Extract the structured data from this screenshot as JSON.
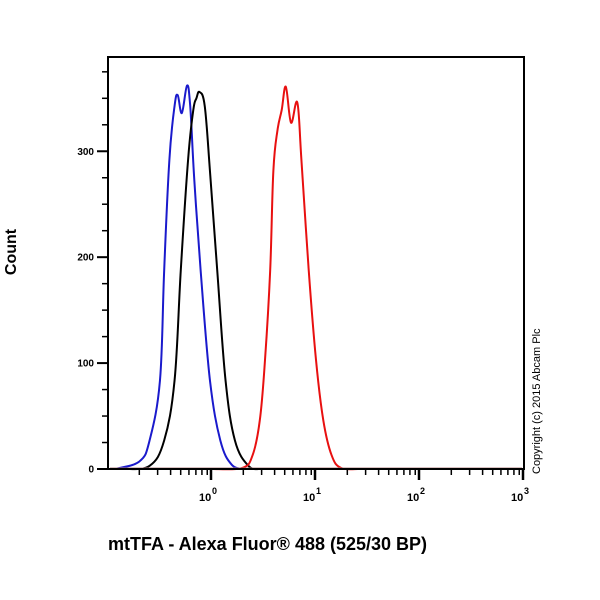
{
  "chart_data": {
    "type": "line",
    "subtype": "flow-cytometry-histogram",
    "title": "",
    "xlabel": "mtTFA - Alexa Fluor® 488 (525/30 BP)",
    "ylabel": "Count",
    "xscale": "log",
    "xlim_log10": [
      -1,
      3
    ],
    "ylim": [
      0,
      389
    ],
    "x_tick_labels": [
      {
        "base": "10",
        "exp": "0",
        "log10": 0
      },
      {
        "base": "10",
        "exp": "1",
        "log10": 1
      },
      {
        "base": "10",
        "exp": "2",
        "log10": 2
      },
      {
        "base": "10",
        "exp": "3",
        "log10": 3
      }
    ],
    "y_ticks": [
      0,
      100,
      200,
      300
    ],
    "y_minor_step": 25,
    "grid": false,
    "legend": null,
    "annotation": "Copyright (c) 2015 Abcam Plc",
    "series": [
      {
        "name": "blue",
        "color": "#1a1acc",
        "points_log10_count": [
          [
            -0.94,
            0
          ],
          [
            -0.7,
            7
          ],
          [
            -0.6,
            27
          ],
          [
            -0.5,
            84
          ],
          [
            -0.46,
            188
          ],
          [
            -0.41,
            292
          ],
          [
            -0.36,
            343
          ],
          [
            -0.33,
            353
          ],
          [
            -0.29,
            336
          ],
          [
            -0.24,
            362
          ],
          [
            -0.21,
            343
          ],
          [
            -0.17,
            273
          ],
          [
            -0.11,
            188
          ],
          [
            -0.02,
            84
          ],
          [
            0.08,
            27
          ],
          [
            0.19,
            4
          ],
          [
            0.32,
            0
          ]
        ]
      },
      {
        "name": "black",
        "color": "#000000",
        "points_log10_count": [
          [
            -0.84,
            0
          ],
          [
            -0.6,
            3
          ],
          [
            -0.46,
            27
          ],
          [
            -0.36,
            84
          ],
          [
            -0.3,
            188
          ],
          [
            -0.23,
            292
          ],
          [
            -0.18,
            339
          ],
          [
            -0.15,
            350
          ],
          [
            -0.12,
            356
          ],
          [
            -0.07,
            343
          ],
          [
            -0.02,
            282
          ],
          [
            0.05,
            188
          ],
          [
            0.13,
            84
          ],
          [
            0.22,
            27
          ],
          [
            0.35,
            3
          ],
          [
            0.47,
            0
          ]
        ]
      },
      {
        "name": "red",
        "color": "#e81010",
        "points_log10_count": [
          [
            0.0,
            0
          ],
          [
            0.29,
            1
          ],
          [
            0.39,
            13
          ],
          [
            0.46,
            46
          ],
          [
            0.51,
            103
          ],
          [
            0.56,
            188
          ],
          [
            0.59,
            282
          ],
          [
            0.63,
            320
          ],
          [
            0.67,
            339
          ],
          [
            0.71,
            361
          ],
          [
            0.76,
            327
          ],
          [
            0.82,
            346
          ],
          [
            0.86,
            292
          ],
          [
            0.93,
            188
          ],
          [
            1.0,
            103
          ],
          [
            1.07,
            46
          ],
          [
            1.15,
            13
          ],
          [
            1.24,
            1
          ],
          [
            1.41,
            0
          ]
        ]
      }
    ]
  },
  "labels": {
    "y_title": "Count",
    "x_title": "mtTFA - Alexa Fluor® 488 (525/30 BP)",
    "copyright": "Copyright (c) 2015 Abcam Plc"
  }
}
